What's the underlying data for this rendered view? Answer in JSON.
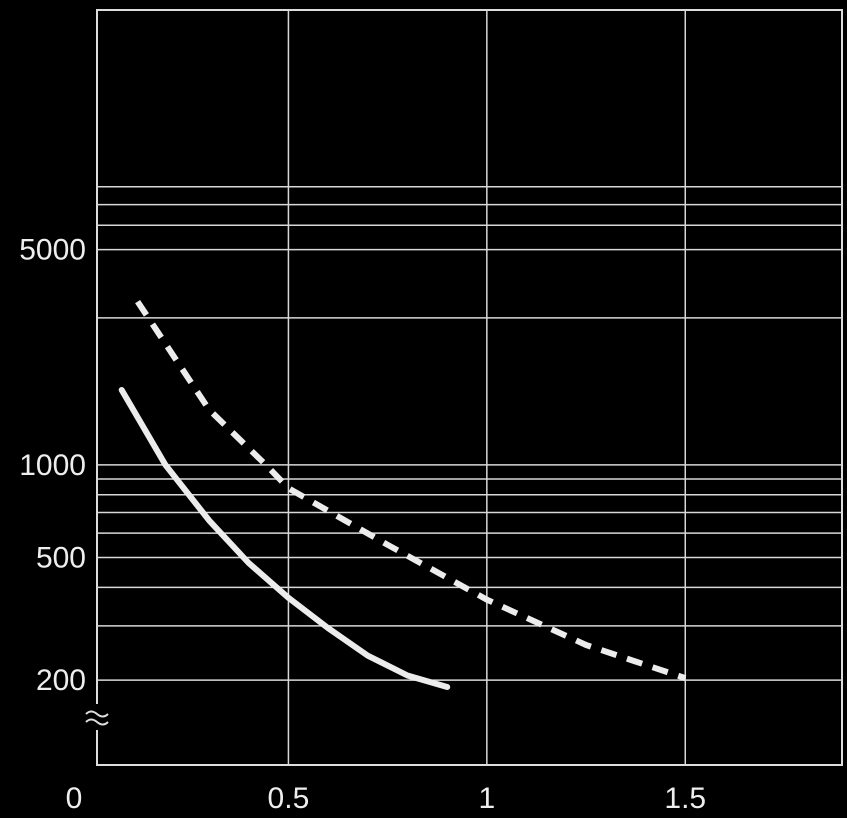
{
  "chart_data": {
    "type": "line",
    "y_scale": "log",
    "grid": true,
    "xlim": [
      0,
      1.9
    ],
    "xticks": [
      0,
      0.5,
      1,
      1.5
    ],
    "ylim": [
      106,
      30000
    ],
    "yticks": [
      200,
      500,
      1000,
      5000
    ],
    "y_minor_gridlines": [
      300,
      400,
      600,
      700,
      800,
      900,
      3000,
      6000,
      7000,
      8000
    ],
    "series": [
      {
        "color": "#ececec",
        "style": "solid",
        "x": [
          0.08,
          0.19,
          0.3,
          0.4,
          0.5,
          0.6,
          0.7,
          0.8,
          0.9
        ],
        "values": [
          1750,
          1000,
          660,
          480,
          370,
          295,
          240,
          207,
          190
        ]
      },
      {
        "color": "#ececec",
        "style": "dashed",
        "x": [
          0.12,
          0.3,
          0.45,
          0.5,
          0.75,
          1.0,
          1.25,
          1.5
        ],
        "values": [
          3390,
          1510,
          980,
          840,
          550,
          365,
          260,
          203
        ]
      }
    ]
  }
}
